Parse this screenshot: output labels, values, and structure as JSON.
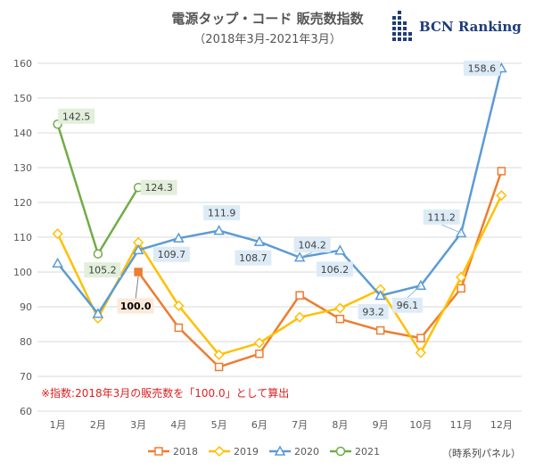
{
  "chart_data": {
    "type": "line",
    "title": "電源タップ・コード 販売数指数",
    "subtitle": "（2018年3月-2021年3月）",
    "categories": [
      "1月",
      "2月",
      "3月",
      "4月",
      "5月",
      "6月",
      "7月",
      "8月",
      "9月",
      "10月",
      "11月",
      "12月"
    ],
    "ylim": [
      60,
      160
    ],
    "yticks": [
      60,
      70,
      80,
      90,
      100,
      110,
      120,
      130,
      140,
      150,
      160
    ],
    "grid": true,
    "legend_position": "bottom",
    "series": [
      {
        "name": "2018",
        "color": "#ed7d31",
        "marker": "square",
        "values": [
          null,
          null,
          100.0,
          84.0,
          72.7,
          76.5,
          93.3,
          86.5,
          83.2,
          81.0,
          95.3,
          129.0
        ]
      },
      {
        "name": "2019",
        "color": "#ffc000",
        "marker": "diamond",
        "values": [
          111.0,
          86.7,
          108.5,
          90.3,
          76.2,
          79.6,
          87.0,
          89.6,
          95.0,
          76.8,
          98.5,
          122.0
        ]
      },
      {
        "name": "2020",
        "color": "#5b9bd5",
        "marker": "triangle",
        "values": [
          102.5,
          88.0,
          106.3,
          109.7,
          111.9,
          108.7,
          104.2,
          106.2,
          93.2,
          96.1,
          111.2,
          158.6
        ]
      },
      {
        "name": "2021",
        "color": "#70ad47",
        "marker": "circle",
        "values": [
          142.5,
          105.2,
          124.3,
          null,
          null,
          null,
          null,
          null,
          null,
          null,
          null,
          null
        ]
      }
    ],
    "annotations": [
      {
        "text": "142.5",
        "series": "2021",
        "index": 0
      },
      {
        "text": "105.2",
        "series": "2021",
        "index": 1
      },
      {
        "text": "124.3",
        "series": "2021",
        "index": 2
      },
      {
        "text": "100.0",
        "series": "2018",
        "index": 2
      },
      {
        "text": "109.7",
        "series": "2020",
        "index": 3
      },
      {
        "text": "111.9",
        "series": "2020",
        "index": 4
      },
      {
        "text": "108.7",
        "series": "2020",
        "index": 5
      },
      {
        "text": "104.2",
        "series": "2020",
        "index": 6
      },
      {
        "text": "106.2",
        "series": "2020",
        "index": 7
      },
      {
        "text": "93.2",
        "series": "2020",
        "index": 8
      },
      {
        "text": "96.1",
        "series": "2020",
        "index": 9
      },
      {
        "text": "111.2",
        "series": "2020",
        "index": 10
      },
      {
        "text": "158.6",
        "series": "2020",
        "index": 11
      }
    ],
    "note": "※指数:2018年3月の販売数を「100.0」として算出",
    "panel_label": "（時系列パネル）"
  },
  "logo": {
    "text": "BCN Ranking"
  }
}
